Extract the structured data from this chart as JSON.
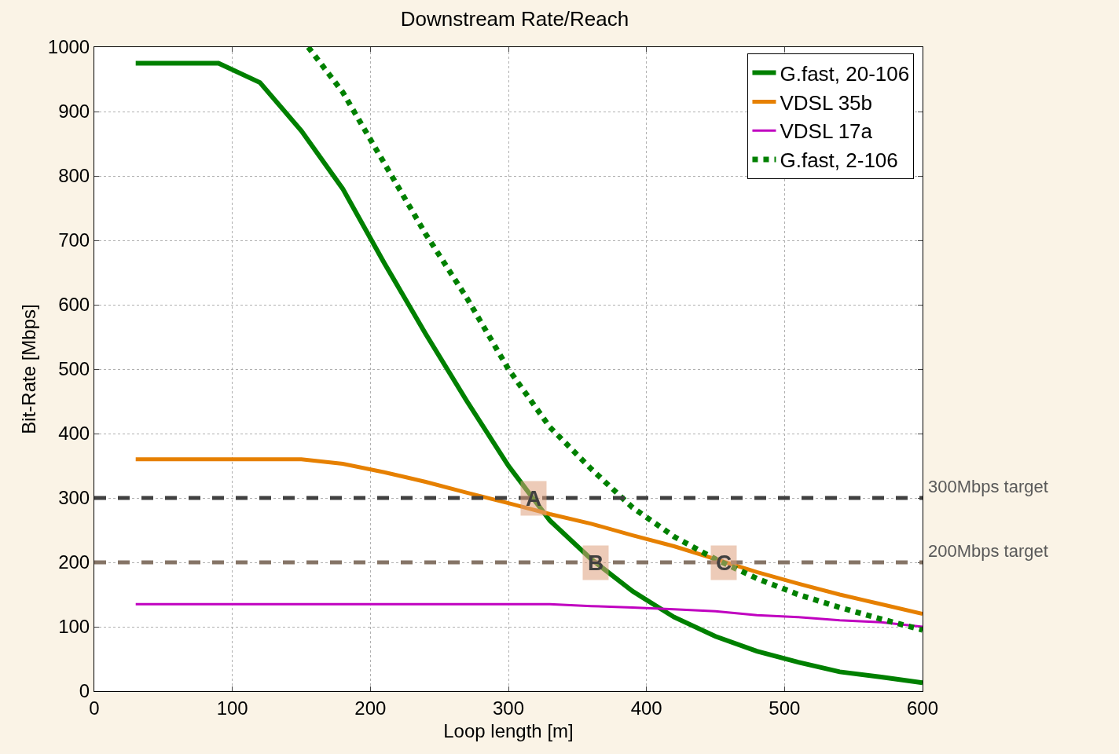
{
  "chart_data": {
    "type": "line",
    "title": "Downstream Rate/Reach",
    "xlabel": "Loop length [m]",
    "ylabel": "Bit-Rate [Mbps]",
    "xlim": [
      0,
      600
    ],
    "xticks": [
      0,
      100,
      200,
      300,
      400,
      500,
      600
    ],
    "ylim": [
      0,
      1000
    ],
    "yticks": [
      0,
      100,
      200,
      300,
      400,
      500,
      600,
      700,
      800,
      900,
      1000
    ],
    "grid": true,
    "legend": "top right",
    "series": [
      {
        "name": "G.fast, 20-106",
        "color": "#008000",
        "line_style": "solid",
        "x": [
          30,
          90,
          120,
          150,
          180,
          210,
          240,
          270,
          300,
          330,
          360,
          390,
          420,
          450,
          480,
          510,
          540,
          570,
          600
        ],
        "values": [
          975,
          975,
          945,
          870,
          780,
          665,
          555,
          450,
          350,
          265,
          205,
          155,
          115,
          85,
          62,
          45,
          30,
          22,
          13
        ]
      },
      {
        "name": "VDSL 35b",
        "color": "#e68000",
        "line_style": "solid",
        "x": [
          30,
          150,
          180,
          210,
          240,
          270,
          300,
          330,
          360,
          390,
          420,
          450,
          480,
          510,
          540,
          570,
          600
        ],
        "values": [
          360,
          360,
          353,
          340,
          325,
          308,
          292,
          275,
          260,
          242,
          225,
          205,
          185,
          167,
          150,
          135,
          120
        ]
      },
      {
        "name": "VDSL 17a",
        "color": "#c000c0",
        "line_style": "solid",
        "x": [
          30,
          330,
          360,
          390,
          420,
          450,
          480,
          510,
          540,
          570,
          600
        ],
        "values": [
          135,
          135,
          132,
          130,
          127,
          124,
          118,
          115,
          110,
          107,
          100
        ]
      },
      {
        "name": "G.fast, 2-106",
        "color": "#008000",
        "line_style": "dotted",
        "x": [
          155,
          180,
          210,
          240,
          270,
          300,
          330,
          360,
          390,
          420,
          450,
          480,
          510,
          540,
          570,
          600
        ],
        "values": [
          1000,
          930,
          820,
          710,
          610,
          500,
          410,
          345,
          285,
          240,
          205,
          175,
          150,
          130,
          112,
          95
        ]
      }
    ],
    "ref_lines": [
      {
        "axis": "y",
        "value": 300,
        "label": "300Mbps target",
        "color": "#404040",
        "line_style": "dashed"
      },
      {
        "axis": "y",
        "value": 200,
        "label": "200Mbps target",
        "color": "#857466",
        "line_style": "dashed"
      }
    ],
    "annotations": [
      {
        "text": "A",
        "x": 318,
        "y": 300
      },
      {
        "text": "B",
        "x": 363,
        "y": 200
      },
      {
        "text": "C",
        "x": 456,
        "y": 200
      }
    ]
  }
}
